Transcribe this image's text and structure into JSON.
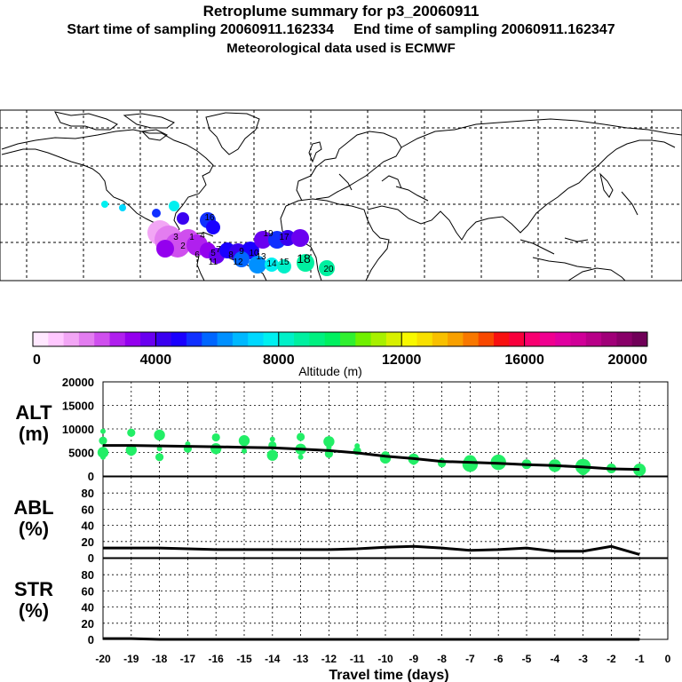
{
  "header": {
    "title": "Retroplume summary for p3_20060911",
    "sampling_line": "Start time of sampling 20060911.162334     End time of sampling 20060911.162347",
    "met_line": "Meteorological data used is ECMWF"
  },
  "colorbar": {
    "label": "Altitude (m)",
    "ticks": [
      "0",
      "4000",
      "8000",
      "12000",
      "16000",
      "20000"
    ],
    "range": [
      0,
      20000
    ],
    "colors": [
      "#ffe8ff",
      "#ffc8ff",
      "#f2a6f5",
      "#e37df0",
      "#cf4fee",
      "#b020ee",
      "#9400ee",
      "#6a00f0",
      "#3a00f0",
      "#1a00ff",
      "#1030ff",
      "#0066ff",
      "#0090ff",
      "#00b8ff",
      "#00d8ff",
      "#00f0f0",
      "#00f0c8",
      "#00f0a0",
      "#00f080",
      "#00f060",
      "#30f030",
      "#70f000",
      "#a8f000",
      "#d8f000",
      "#f8f800",
      "#f8e000",
      "#f8c000",
      "#f8a000",
      "#f87800",
      "#f84800",
      "#f81010",
      "#f8003c",
      "#f80070",
      "#f00090",
      "#e000a0",
      "#d00098",
      "#b80088",
      "#a00078",
      "#880068",
      "#700058"
    ]
  },
  "map": {
    "release_labels": [
      "1",
      "2",
      "3",
      "4",
      "5",
      "6",
      "7",
      "8",
      "9",
      "10",
      "11",
      "12",
      "13",
      "14",
      "15",
      "16",
      "17",
      "18",
      "19",
      "20"
    ],
    "longitudes": [
      "-180",
      "-150",
      "-120",
      "-90",
      "-60",
      "-30",
      "0",
      "30",
      "60",
      "90",
      "120",
      "150",
      "180"
    ],
    "latitudes": [
      "90",
      "60",
      "30",
      "0",
      "-30",
      "-60",
      "-90"
    ]
  },
  "chart_data": [
    {
      "type": "scatter",
      "name": "ALT",
      "ylabel": "ALT",
      "yunit": "(m)",
      "ylim": [
        0,
        20000
      ],
      "yticks": [
        "0",
        "5000",
        "10000",
        "15000",
        "20000"
      ],
      "xlim": [
        -20,
        0
      ],
      "x": [
        -20,
        -19,
        -18,
        -17,
        -16,
        -15,
        -14,
        -13,
        -12,
        -11,
        -10,
        -9,
        -8,
        -7,
        -6,
        -5,
        -4,
        -3,
        -2,
        -1
      ],
      "mean_line": [
        6500,
        6500,
        6400,
        6300,
        6200,
        6100,
        6000,
        5700,
        5400,
        4900,
        4200,
        3700,
        3100,
        2900,
        2700,
        2400,
        2200,
        1900,
        1500,
        1400
      ],
      "points": [
        {
          "x": -20,
          "y": [
            9500,
            7500,
            5000,
            4000
          ]
        },
        {
          "x": -19,
          "y": [
            9200,
            5500,
            4800
          ]
        },
        {
          "x": -18,
          "y": [
            8700,
            5800,
            4000
          ]
        },
        {
          "x": -17,
          "y": [
            6800,
            5800
          ]
        },
        {
          "x": -16,
          "y": [
            8200,
            5800
          ]
        },
        {
          "x": -15,
          "y": [
            7500,
            5300
          ]
        },
        {
          "x": -14,
          "y": [
            7800,
            6500,
            4400
          ]
        },
        {
          "x": -13,
          "y": [
            8300,
            5700,
            4000
          ]
        },
        {
          "x": -12,
          "y": [
            7300,
            6000,
            4700
          ]
        },
        {
          "x": -11,
          "y": [
            6400,
            5300
          ]
        },
        {
          "x": -10,
          "y": [
            4400,
            3800
          ]
        },
        {
          "x": -9,
          "y": [
            3600,
            2900
          ]
        },
        {
          "x": -8,
          "y": [
            3300,
            2700
          ]
        },
        {
          "x": -7,
          "y": [
            3100,
            2500
          ]
        },
        {
          "x": -6,
          "y": [
            2900
          ]
        },
        {
          "x": -5,
          "y": [
            2500
          ]
        },
        {
          "x": -4,
          "y": [
            2200
          ]
        },
        {
          "x": -3,
          "y": [
            2000,
            1200
          ]
        },
        {
          "x": -2,
          "y": [
            1600
          ]
        },
        {
          "x": -1,
          "y": [
            1300
          ]
        }
      ]
    },
    {
      "type": "line",
      "name": "ABL",
      "ylabel": "ABL",
      "yunit": "(%)",
      "ylim": [
        0,
        100
      ],
      "yticks": [
        "0",
        "20",
        "40",
        "60",
        "80"
      ],
      "x": [
        -20,
        -19,
        -18,
        -17,
        -16,
        -15,
        -14,
        -13,
        -12,
        -11,
        -10,
        -9,
        -8,
        -7,
        -6,
        -5,
        -4,
        -3,
        -2,
        -1
      ],
      "values": [
        12,
        12,
        12,
        11,
        10,
        10,
        10,
        10,
        10,
        11,
        13,
        14,
        12,
        9,
        10,
        12,
        8,
        8,
        14,
        4
      ]
    },
    {
      "type": "line",
      "name": "STR",
      "ylabel": "STR",
      "yunit": "(%)",
      "ylim": [
        0,
        100
      ],
      "yticks": [
        "0",
        "20",
        "40",
        "60",
        "80"
      ],
      "x": [
        -20,
        -19,
        -18,
        -17,
        -16,
        -15,
        -14,
        -13,
        -12,
        -11,
        -10,
        -9,
        -8,
        -7,
        -6,
        -5,
        -4,
        -3,
        -2,
        -1
      ],
      "values": [
        1,
        1,
        0,
        0,
        0,
        0,
        0,
        0,
        0,
        0,
        0,
        0,
        0,
        0,
        0,
        0,
        0,
        0,
        0,
        0
      ]
    }
  ],
  "xaxis": {
    "ticks": [
      "-20",
      "-19",
      "-18",
      "-17",
      "-16",
      "-15",
      "-14",
      "-13",
      "-12",
      "-11",
      "-10",
      "-9",
      "-8",
      "-7",
      "-6",
      "-5",
      "-4",
      "-3",
      "-2",
      "-1",
      "0"
    ],
    "label": "Travel time (days)"
  }
}
